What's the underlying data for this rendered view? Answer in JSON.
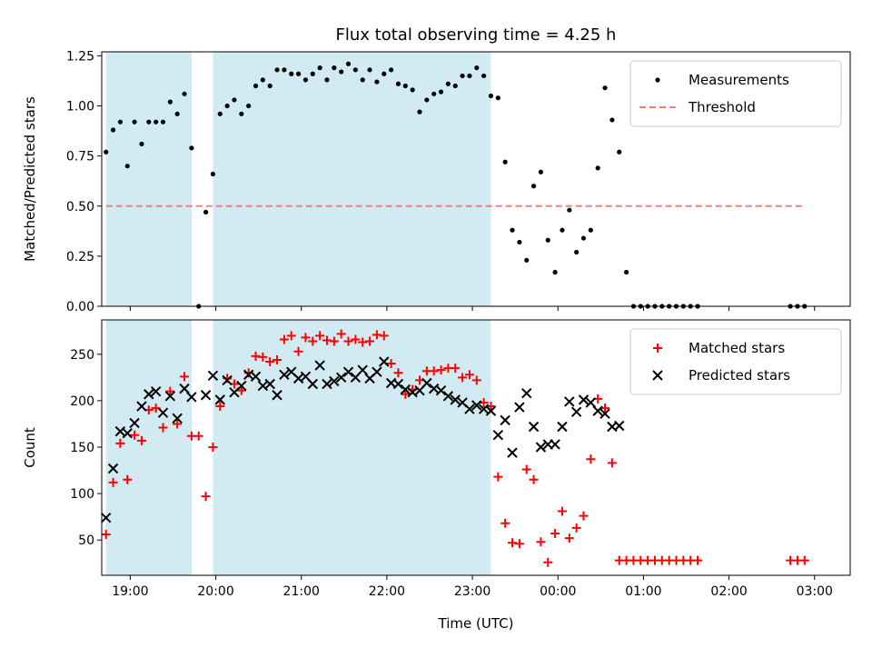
{
  "chart_data": [
    {
      "type": "scatter",
      "title": "Flux total observing time = 4.25 h",
      "ylabel": "Matched/Predicted stars",
      "xlabel": "",
      "xlim": [
        "18:40",
        "03:25"
      ],
      "ylim": [
        0,
        1.27
      ],
      "yticks": [
        0.0,
        0.25,
        0.5,
        0.75,
        1.0,
        1.25
      ],
      "ytick_labels": [
        "0.00",
        "0.25",
        "0.50",
        "0.75",
        "1.00",
        "1.25"
      ],
      "shaded_regions": [
        [
          "18:43",
          "19:43"
        ],
        [
          "19:58",
          "23:13"
        ]
      ],
      "shade_color": "#add8e6",
      "legend_position": "top-right",
      "threshold": {
        "name": "Threshold",
        "value": 0.5,
        "x_range": [
          "18:43",
          "02:53"
        ],
        "color": "#f08080"
      },
      "series": [
        {
          "name": "Measurements",
          "color": "#000000",
          "marker": "dot",
          "points": [
            [
              "18:43",
              0.77
            ],
            [
              "18:48",
              0.88
            ],
            [
              "18:53",
              0.92
            ],
            [
              "18:58",
              0.7
            ],
            [
              "19:03",
              0.92
            ],
            [
              "19:08",
              0.81
            ],
            [
              "19:13",
              0.92
            ],
            [
              "19:18",
              0.92
            ],
            [
              "19:23",
              0.92
            ],
            [
              "19:28",
              1.02
            ],
            [
              "19:33",
              0.96
            ],
            [
              "19:38",
              1.06
            ],
            [
              "19:43",
              0.79
            ],
            [
              "19:48",
              0.0
            ],
            [
              "19:53",
              0.47
            ],
            [
              "19:58",
              0.66
            ],
            [
              "20:03",
              0.96
            ],
            [
              "20:08",
              1.0
            ],
            [
              "20:13",
              1.03
            ],
            [
              "20:18",
              0.96
            ],
            [
              "20:23",
              1.0
            ],
            [
              "20:28",
              1.1
            ],
            [
              "20:33",
              1.13
            ],
            [
              "20:38",
              1.1
            ],
            [
              "20:43",
              1.18
            ],
            [
              "20:48",
              1.18
            ],
            [
              "20:53",
              1.16
            ],
            [
              "20:58",
              1.16
            ],
            [
              "21:03",
              1.13
            ],
            [
              "21:08",
              1.16
            ],
            [
              "21:13",
              1.19
            ],
            [
              "21:18",
              1.13
            ],
            [
              "21:23",
              1.19
            ],
            [
              "21:28",
              1.17
            ],
            [
              "21:33",
              1.21
            ],
            [
              "21:38",
              1.18
            ],
            [
              "21:43",
              1.13
            ],
            [
              "21:48",
              1.18
            ],
            [
              "21:53",
              1.12
            ],
            [
              "21:58",
              1.16
            ],
            [
              "22:03",
              1.18
            ],
            [
              "22:08",
              1.11
            ],
            [
              "22:13",
              1.1
            ],
            [
              "22:18",
              1.08
            ],
            [
              "22:23",
              0.97
            ],
            [
              "22:28",
              1.03
            ],
            [
              "22:33",
              1.06
            ],
            [
              "22:38",
              1.07
            ],
            [
              "22:43",
              1.11
            ],
            [
              "22:48",
              1.1
            ],
            [
              "22:53",
              1.15
            ],
            [
              "22:58",
              1.15
            ],
            [
              "23:03",
              1.19
            ],
            [
              "23:08",
              1.15
            ],
            [
              "23:13",
              1.05
            ],
            [
              "23:18",
              1.04
            ],
            [
              "23:23",
              0.72
            ],
            [
              "23:28",
              0.38
            ],
            [
              "23:33",
              0.32
            ],
            [
              "23:38",
              0.23
            ],
            [
              "23:43",
              0.6
            ],
            [
              "23:48",
              0.67
            ],
            [
              "23:53",
              0.33
            ],
            [
              "23:58",
              0.17
            ],
            [
              "00:03",
              0.38
            ],
            [
              "00:08",
              0.48
            ],
            [
              "00:13",
              0.27
            ],
            [
              "00:18",
              0.34
            ],
            [
              "00:23",
              0.38
            ],
            [
              "00:28",
              0.69
            ],
            [
              "00:33",
              1.09
            ],
            [
              "00:38",
              0.93
            ],
            [
              "00:43",
              0.77
            ],
            [
              "00:48",
              0.17
            ],
            [
              "00:53",
              0.0
            ],
            [
              "00:58",
              0.0
            ],
            [
              "01:03",
              0.0
            ],
            [
              "01:08",
              0.0
            ],
            [
              "01:13",
              0.0
            ],
            [
              "01:18",
              0.0
            ],
            [
              "01:23",
              0.0
            ],
            [
              "01:28",
              0.0
            ],
            [
              "01:33",
              0.0
            ],
            [
              "01:38",
              0.0
            ],
            [
              "02:43",
              0.0
            ],
            [
              "02:48",
              0.0
            ],
            [
              "02:53",
              0.0
            ]
          ]
        }
      ]
    },
    {
      "type": "scatter",
      "title": "",
      "ylabel": "Count",
      "xlabel": "Time (UTC)",
      "xlim": [
        "18:40",
        "03:25"
      ],
      "ylim": [
        12,
        287
      ],
      "yticks": [
        50,
        100,
        150,
        200,
        250
      ],
      "ytick_labels": [
        "50",
        "100",
        "150",
        "200",
        "250"
      ],
      "xticks": [
        "19:00",
        "20:00",
        "21:00",
        "22:00",
        "23:00",
        "00:00",
        "01:00",
        "02:00",
        "03:00"
      ],
      "shaded_regions": [
        [
          "18:43",
          "19:43"
        ],
        [
          "19:58",
          "23:13"
        ]
      ],
      "shade_color": "#add8e6",
      "legend_position": "top-right",
      "series": [
        {
          "name": "Matched stars",
          "color": "#ff0000",
          "marker": "plus",
          "points": [
            [
              "18:43",
              56
            ],
            [
              "18:48",
              112
            ],
            [
              "18:53",
              154
            ],
            [
              "18:58",
              115
            ],
            [
              "19:03",
              163
            ],
            [
              "19:08",
              157
            ],
            [
              "19:13",
              190
            ],
            [
              "19:18",
              192
            ],
            [
              "19:23",
              171
            ],
            [
              "19:28",
              210
            ],
            [
              "19:33",
              175
            ],
            [
              "19:38",
              226
            ],
            [
              "19:43",
              162
            ],
            [
              "19:48",
              162
            ],
            [
              "19:53",
              97
            ],
            [
              "19:58",
              150
            ],
            [
              "20:03",
              194
            ],
            [
              "20:08",
              224
            ],
            [
              "20:13",
              218
            ],
            [
              "20:18",
              211
            ],
            [
              "20:23",
              230
            ],
            [
              "20:28",
              248
            ],
            [
              "20:33",
              247
            ],
            [
              "20:38",
              242
            ],
            [
              "20:43",
              244
            ],
            [
              "20:48",
              266
            ],
            [
              "20:53",
              270
            ],
            [
              "20:58",
              253
            ],
            [
              "21:03",
              268
            ],
            [
              "21:08",
              264
            ],
            [
              "21:13",
              270
            ],
            [
              "21:18",
              265
            ],
            [
              "21:23",
              264
            ],
            [
              "21:28",
              272
            ],
            [
              "21:33",
              264
            ],
            [
              "21:38",
              266
            ],
            [
              "21:43",
              263
            ],
            [
              "21:48",
              264
            ],
            [
              "21:53",
              271
            ],
            [
              "21:58",
              270
            ],
            [
              "22:03",
              240
            ],
            [
              "22:08",
              230
            ],
            [
              "22:13",
              207
            ],
            [
              "22:18",
              212
            ],
            [
              "22:23",
              222
            ],
            [
              "22:28",
              232
            ],
            [
              "22:33",
              232
            ],
            [
              "22:38",
              233
            ],
            [
              "22:43",
              235
            ],
            [
              "22:48",
              235
            ],
            [
              "22:53",
              225
            ],
            [
              "22:58",
              228
            ],
            [
              "23:03",
              222
            ],
            [
              "23:08",
              198
            ],
            [
              "23:13",
              194
            ],
            [
              "23:18",
              118
            ],
            [
              "23:23",
              68
            ],
            [
              "23:28",
              47
            ],
            [
              "23:33",
              46
            ],
            [
              "23:38",
              126
            ],
            [
              "23:43",
              115
            ],
            [
              "23:48",
              48
            ],
            [
              "23:53",
              26
            ],
            [
              "23:58",
              57
            ],
            [
              "00:03",
              81
            ],
            [
              "00:08",
              52
            ],
            [
              "00:13",
              63
            ],
            [
              "00:18",
              76
            ],
            [
              "00:23",
              137
            ],
            [
              "00:28",
              202
            ],
            [
              "00:33",
              192
            ],
            [
              "00:38",
              133
            ],
            [
              "00:43",
              28
            ],
            [
              "00:48",
              28
            ],
            [
              "00:53",
              28
            ],
            [
              "00:58",
              28
            ],
            [
              "01:03",
              28
            ],
            [
              "01:08",
              28
            ],
            [
              "01:13",
              28
            ],
            [
              "01:18",
              28
            ],
            [
              "01:23",
              28
            ],
            [
              "01:28",
              28
            ],
            [
              "01:33",
              28
            ],
            [
              "01:38",
              28
            ],
            [
              "02:43",
              28
            ],
            [
              "02:48",
              28
            ],
            [
              "02:53",
              28
            ]
          ]
        },
        {
          "name": "Predicted stars",
          "color": "#000000",
          "marker": "x",
          "points": [
            [
              "18:43",
              74
            ],
            [
              "18:48",
              127
            ],
            [
              "18:53",
              167
            ],
            [
              "18:58",
              165
            ],
            [
              "19:03",
              176
            ],
            [
              "19:08",
              194
            ],
            [
              "19:13",
              207
            ],
            [
              "19:18",
              210
            ],
            [
              "19:23",
              187
            ],
            [
              "19:28",
              205
            ],
            [
              "19:33",
              181
            ],
            [
              "19:38",
              213
            ],
            [
              "19:43",
              204
            ],
            [
              "19:53",
              206
            ],
            [
              "19:58",
              227
            ],
            [
              "20:03",
              201
            ],
            [
              "20:08",
              222
            ],
            [
              "20:13",
              209
            ],
            [
              "20:18",
              216
            ],
            [
              "20:23",
              228
            ],
            [
              "20:28",
              226
            ],
            [
              "20:33",
              216
            ],
            [
              "20:38",
              218
            ],
            [
              "20:43",
              206
            ],
            [
              "20:48",
              228
            ],
            [
              "20:53",
              231
            ],
            [
              "20:58",
              224
            ],
            [
              "21:03",
              226
            ],
            [
              "21:08",
              218
            ],
            [
              "21:13",
              238
            ],
            [
              "21:18",
              218
            ],
            [
              "21:23",
              221
            ],
            [
              "21:28",
              225
            ],
            [
              "21:33",
              231
            ],
            [
              "21:38",
              225
            ],
            [
              "21:43",
              233
            ],
            [
              "21:48",
              224
            ],
            [
              "21:53",
              231
            ],
            [
              "21:58",
              242
            ],
            [
              "22:03",
              219
            ],
            [
              "22:08",
              218
            ],
            [
              "22:13",
              212
            ],
            [
              "22:18",
              209
            ],
            [
              "22:23",
              211
            ],
            [
              "22:28",
              219
            ],
            [
              "22:33",
              213
            ],
            [
              "22:38",
              211
            ],
            [
              "22:43",
              205
            ],
            [
              "22:48",
              201
            ],
            [
              "22:53",
              198
            ],
            [
              "22:58",
              191
            ],
            [
              "23:03",
              195
            ],
            [
              "23:08",
              191
            ],
            [
              "23:13",
              189
            ],
            [
              "23:18",
              163
            ],
            [
              "23:23",
              179
            ],
            [
              "23:28",
              144
            ],
            [
              "23:33",
              193
            ],
            [
              "23:38",
              208
            ],
            [
              "23:43",
              172
            ],
            [
              "23:48",
              150
            ],
            [
              "23:53",
              153
            ],
            [
              "23:58",
              153
            ],
            [
              "00:03",
              172
            ],
            [
              "00:08",
              199
            ],
            [
              "00:13",
              188
            ],
            [
              "00:18",
              201
            ],
            [
              "00:23",
              198
            ],
            [
              "00:28",
              189
            ],
            [
              "00:33",
              186
            ],
            [
              "00:38",
              172
            ],
            [
              "00:43",
              173
            ]
          ]
        }
      ]
    }
  ]
}
